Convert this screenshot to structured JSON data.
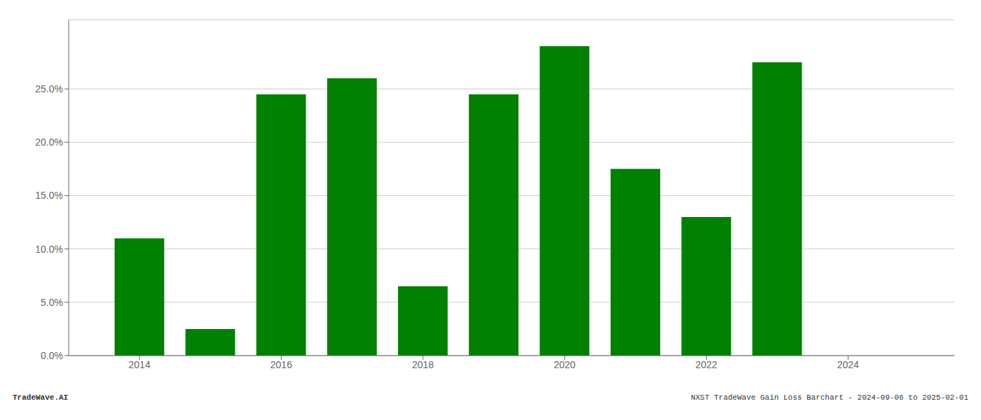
{
  "chart_data": {
    "type": "bar",
    "x": [
      2014,
      2015,
      2016,
      2017,
      2018,
      2019,
      2020,
      2021,
      2022,
      2023
    ],
    "values": [
      0.11,
      0.025,
      0.245,
      0.26,
      0.065,
      0.245,
      0.29,
      0.175,
      0.13,
      0.275
    ],
    "color": "#008000",
    "xlim": [
      2013.0,
      2025.5
    ],
    "ylim": [
      0.0,
      0.315
    ],
    "xticks": [
      2014,
      2016,
      2018,
      2020,
      2022,
      2024
    ],
    "yticks": [
      {
        "value": 0.0,
        "label": "0.0%"
      },
      {
        "value": 0.05,
        "label": "5.0%"
      },
      {
        "value": 0.1,
        "label": "10.0%"
      },
      {
        "value": 0.15,
        "label": "15.0%"
      },
      {
        "value": 0.2,
        "label": "20.0%"
      },
      {
        "value": 0.25,
        "label": "25.0%"
      }
    ],
    "grid": true,
    "annotations": [
      "TradeWave.AI",
      "NXST TradeWave Gain Loss Barchart - 2024-09-06 to 2025-02-01"
    ]
  }
}
